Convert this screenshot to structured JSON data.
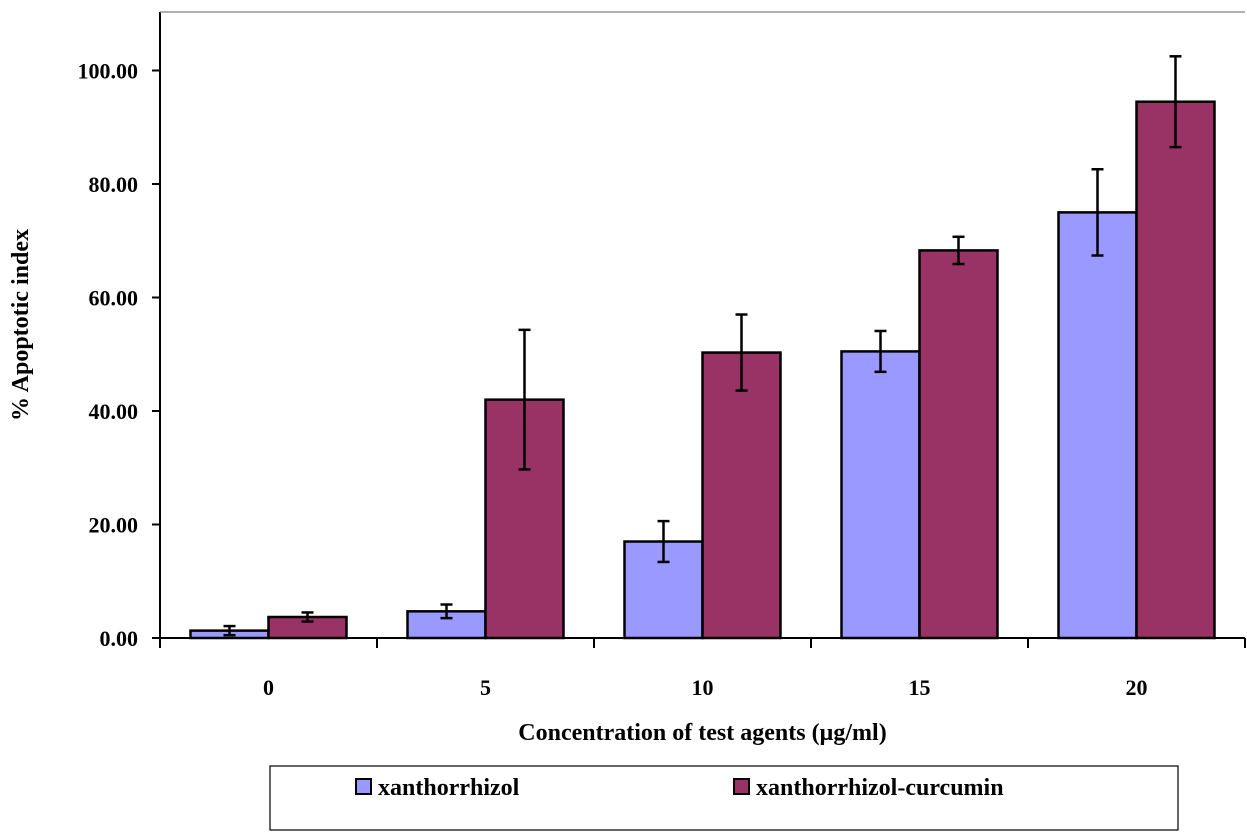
{
  "chart_data": {
    "type": "bar",
    "title": "",
    "xlabel": "Concentration of test agents (µg/ml)",
    "ylabel": "% Apoptotic index",
    "categories": [
      "0",
      "5",
      "10",
      "15",
      "20"
    ],
    "ylim": [
      0,
      110
    ],
    "yticks": [
      "0.00",
      "20.00",
      "40.00",
      "60.00",
      "80.00",
      "100.00"
    ],
    "ytick_values": [
      0,
      20,
      40,
      60,
      80,
      100
    ],
    "grid": false,
    "legend_position": "bottom",
    "series": [
      {
        "name": "xanthorrhizol",
        "color": "#9999ff",
        "values": [
          1.3,
          4.7,
          17.0,
          50.5,
          75.0
        ],
        "errors": [
          0.8,
          1.2,
          3.6,
          3.6,
          7.6
        ]
      },
      {
        "name": "xanthorrhizol-curcumin",
        "color": "#993366",
        "values": [
          3.7,
          42.0,
          50.3,
          68.3,
          94.5
        ],
        "errors": [
          0.8,
          12.3,
          6.7,
          2.4,
          8.0
        ]
      }
    ]
  }
}
